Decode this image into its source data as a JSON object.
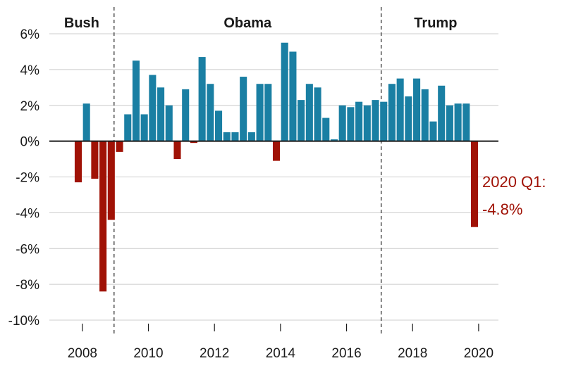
{
  "chart_data": {
    "type": "bar",
    "title": "",
    "xlabel": "",
    "ylabel": "",
    "ylim": [
      -10,
      6
    ],
    "yticks": [
      6,
      4,
      2,
      0,
      -2,
      -4,
      -6,
      -8,
      -10
    ],
    "ytick_labels": [
      "6%",
      "4%",
      "2%",
      "0%",
      "-2%",
      "-4%",
      "-6%",
      "-8%",
      "-10%"
    ],
    "xlim": [
      2007.0,
      2020.6
    ],
    "xticks": [
      2008,
      2010,
      2012,
      2014,
      2016,
      2018,
      2020
    ],
    "xtick_labels": [
      "2008",
      "2010",
      "2012",
      "2014",
      "2016",
      "2018",
      "2020"
    ],
    "grid": true,
    "positive_color": "#1a7fa3",
    "negative_color": "#a01206",
    "quarters": [
      "2008 Q1",
      "2008 Q2",
      "2008 Q3",
      "2008 Q4",
      "2009 Q1",
      "2009 Q2",
      "2009 Q3",
      "2009 Q4",
      "2010 Q1",
      "2010 Q2",
      "2010 Q3",
      "2010 Q4",
      "2011 Q1",
      "2011 Q2",
      "2011 Q3",
      "2011 Q4",
      "2012 Q1",
      "2012 Q2",
      "2012 Q3",
      "2012 Q4",
      "2013 Q1",
      "2013 Q2",
      "2013 Q3",
      "2013 Q4",
      "2014 Q1",
      "2014 Q2",
      "2014 Q3",
      "2014 Q4",
      "2015 Q1",
      "2015 Q2",
      "2015 Q3",
      "2015 Q4",
      "2016 Q1",
      "2016 Q2",
      "2016 Q3",
      "2016 Q4",
      "2017 Q1",
      "2017 Q2",
      "2017 Q3",
      "2017 Q4",
      "2018 Q1",
      "2018 Q2",
      "2018 Q3",
      "2018 Q4",
      "2019 Q1",
      "2019 Q2",
      "2019 Q3",
      "2019 Q4",
      "2020 Q1"
    ],
    "x": [
      2007.875,
      2008.125,
      2008.375,
      2008.625,
      2008.875,
      2009.125,
      2009.375,
      2009.625,
      2009.875,
      2010.125,
      2010.375,
      2010.625,
      2010.875,
      2011.125,
      2011.375,
      2011.625,
      2011.875,
      2012.125,
      2012.375,
      2012.625,
      2012.875,
      2013.125,
      2013.375,
      2013.625,
      2013.875,
      2014.125,
      2014.375,
      2014.625,
      2014.875,
      2015.125,
      2015.375,
      2015.625,
      2015.875,
      2016.125,
      2016.375,
      2016.625,
      2016.875,
      2017.125,
      2017.375,
      2017.625,
      2017.875,
      2018.125,
      2018.375,
      2018.625,
      2018.875,
      2019.125,
      2019.375,
      2019.625,
      2019.875
    ],
    "values": [
      -2.3,
      2.1,
      -2.1,
      -8.4,
      -4.4,
      -0.6,
      1.5,
      4.5,
      1.5,
      3.7,
      3.0,
      2.0,
      -1.0,
      2.9,
      -0.1,
      4.7,
      3.2,
      1.7,
      0.5,
      0.5,
      3.6,
      0.5,
      3.2,
      3.2,
      -1.1,
      5.5,
      5.0,
      2.3,
      3.2,
      3.0,
      1.3,
      0.1,
      2.0,
      1.9,
      2.2,
      2.0,
      2.3,
      2.2,
      3.2,
      3.5,
      2.5,
      3.5,
      2.9,
      1.1,
      3.1,
      2.0,
      2.1,
      2.1,
      -4.8
    ],
    "eras": [
      {
        "name": "Bush",
        "start": 2007.0,
        "end": 2008.96
      },
      {
        "name": "Obama",
        "start": 2008.96,
        "end": 2017.05
      },
      {
        "name": "Trump",
        "start": 2017.05,
        "end": 2020.6
      }
    ],
    "annotation": {
      "line1": "2020 Q1:",
      "line2": "-4.8%",
      "color": "#a01206"
    }
  }
}
